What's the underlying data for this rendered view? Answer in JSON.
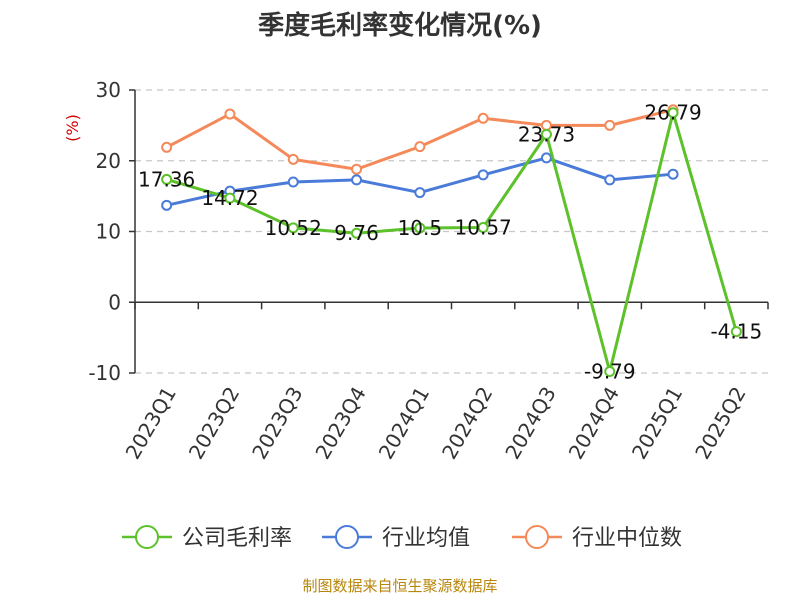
{
  "chart_data": {
    "type": "line",
    "title": "季度毛利率变化情况(%)",
    "ylabel": "(%)",
    "xlabel": "",
    "ylim": [
      -10,
      30
    ],
    "yticks": [
      30,
      20,
      10,
      0,
      -10
    ],
    "grid": true,
    "legend": "bottom",
    "categories": [
      "2023Q1",
      "2023Q2",
      "2023Q3",
      "2023Q4",
      "2024Q1",
      "2024Q2",
      "2024Q3",
      "2024Q4",
      "2025Q1",
      "2025Q2"
    ],
    "series": [
      {
        "name": "公司毛利率",
        "color": "#5cc12a",
        "values": [
          17.36,
          14.72,
          10.52,
          9.76,
          10.5,
          10.57,
          23.73,
          -9.79,
          26.79,
          -4.15
        ],
        "labels": [
          "17.36",
          "14.72",
          "10.52",
          "9.76",
          "10.5",
          "10.57",
          "23.73",
          "-9.79",
          "26.79",
          "-4.15"
        ]
      },
      {
        "name": "行业均值",
        "color": "#4a7bd8",
        "values": [
          13.7,
          15.7,
          17.0,
          17.3,
          15.5,
          18.0,
          20.4,
          17.3,
          18.1,
          null
        ]
      },
      {
        "name": "行业中位数",
        "color": "#f4895a",
        "values": [
          21.9,
          26.6,
          20.2,
          18.8,
          22.0,
          26.0,
          25.0,
          25.0,
          27.2,
          null
        ]
      }
    ],
    "source": "制图数据来自恒生聚源数据库"
  }
}
